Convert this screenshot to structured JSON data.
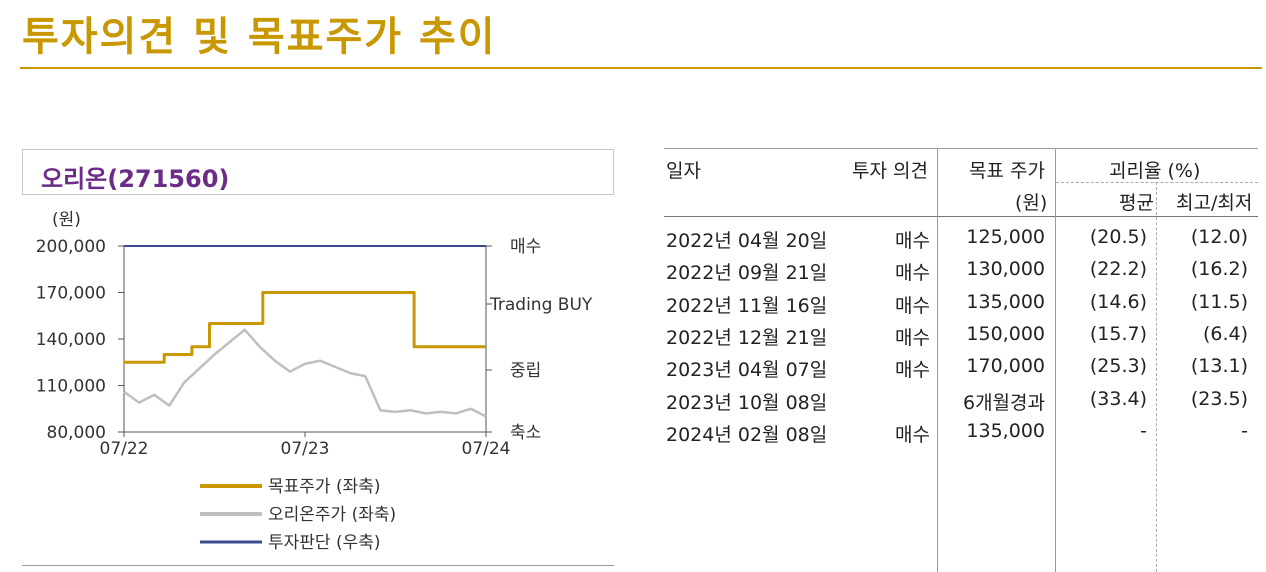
{
  "page_title": "투자의견 및 목표주가 추이",
  "chart_box_title": "오리온(271560)",
  "chart_data": {
    "type": "line",
    "title": "오리온(271560)",
    "y_unit": "(원)",
    "left_axis": {
      "ylim": [
        80000,
        200000
      ],
      "ticks": [
        80000,
        110000,
        140000,
        170000,
        200000
      ],
      "tick_labels": [
        "80,000",
        "110,000",
        "140,000",
        "170,000",
        "200,000"
      ]
    },
    "right_axis": {
      "categories": [
        "매수",
        "Trading BUY",
        "중립",
        "축소"
      ]
    },
    "x_axis": {
      "range": [
        "2022-07",
        "2024-07"
      ],
      "ticks": [
        "2022-07",
        "2023-07",
        "2024-07"
      ],
      "tick_labels": [
        "07/22",
        "07/23",
        "07/24"
      ]
    },
    "series": [
      {
        "name": "목표주가 (좌축)",
        "color": "#c99700",
        "axis": "left",
        "step": true,
        "points": [
          {
            "x": "2022-07",
            "y": 125000
          },
          {
            "x": "2022-09-21",
            "y": 130000
          },
          {
            "x": "2022-11-16",
            "y": 135000
          },
          {
            "x": "2022-12-21",
            "y": 150000
          },
          {
            "x": "2023-04-07",
            "y": 170000
          },
          {
            "x": "2024-02-08",
            "y": 135000
          },
          {
            "x": "2024-07",
            "y": 135000
          }
        ]
      },
      {
        "name": "오리온주가 (좌축)",
        "color": "#bfbfbf",
        "axis": "left",
        "points": [
          {
            "x": "2022-07",
            "y": 106000
          },
          {
            "x": "2022-08",
            "y": 99000
          },
          {
            "x": "2022-09",
            "y": 104000
          },
          {
            "x": "2022-10",
            "y": 97000
          },
          {
            "x": "2022-11",
            "y": 112000
          },
          {
            "x": "2022-12",
            "y": 121000
          },
          {
            "x": "2023-01",
            "y": 130000
          },
          {
            "x": "2023-02",
            "y": 138000
          },
          {
            "x": "2023-03",
            "y": 146000
          },
          {
            "x": "2023-04",
            "y": 135000
          },
          {
            "x": "2023-05",
            "y": 126000
          },
          {
            "x": "2023-06",
            "y": 119000
          },
          {
            "x": "2023-07",
            "y": 124000
          },
          {
            "x": "2023-08",
            "y": 126000
          },
          {
            "x": "2023-09",
            "y": 122000
          },
          {
            "x": "2023-10",
            "y": 118000
          },
          {
            "x": "2023-11",
            "y": 116000
          },
          {
            "x": "2023-12",
            "y": 94000
          },
          {
            "x": "2024-01",
            "y": 93000
          },
          {
            "x": "2024-02",
            "y": 94000
          },
          {
            "x": "2024-03",
            "y": 92000
          },
          {
            "x": "2024-04",
            "y": 93000
          },
          {
            "x": "2024-05",
            "y": 92000
          },
          {
            "x": "2024-06",
            "y": 95000
          },
          {
            "x": "2024-07",
            "y": 90000
          }
        ]
      },
      {
        "name": "투자판단 (우축)",
        "color": "#3b4a8c",
        "axis": "right",
        "points": [
          {
            "x": "2022-07",
            "y": "매수"
          },
          {
            "x": "2024-07",
            "y": "매수"
          }
        ]
      }
    ],
    "legend_placement": "bottom",
    "grid": false
  },
  "table": {
    "headers": {
      "date": "일자",
      "opinion": "투자 의견",
      "target": "목표 주가",
      "target_unit": "(원)",
      "deviation": "괴리율 (%)",
      "avg": "평균",
      "maxmin": "최고/최저"
    },
    "rows": [
      {
        "date": "2022년 04월 20일",
        "opinion": "매수",
        "target": "125,000",
        "avg": "(20.5)",
        "maxmin": "(12.0)"
      },
      {
        "date": "2022년 09월 21일",
        "opinion": "매수",
        "target": "130,000",
        "avg": "(22.2)",
        "maxmin": "(16.2)"
      },
      {
        "date": "2022년 11월 16일",
        "opinion": "매수",
        "target": "135,000",
        "avg": "(14.6)",
        "maxmin": "(11.5)"
      },
      {
        "date": "2022년 12월 21일",
        "opinion": "매수",
        "target": "150,000",
        "avg": "(15.7)",
        "maxmin": "(6.4)"
      },
      {
        "date": "2023년 04월 07일",
        "opinion": "매수",
        "target": "170,000",
        "avg": "(25.3)",
        "maxmin": "(13.1)"
      },
      {
        "date": "2023년 10월 08일",
        "opinion": "",
        "target": "6개월경과",
        "avg": "(33.4)",
        "maxmin": "(23.5)"
      },
      {
        "date": "2024년 02월 08일",
        "opinion": "매수",
        "target": "135,000",
        "avg": "-",
        "maxmin": "-"
      }
    ]
  }
}
